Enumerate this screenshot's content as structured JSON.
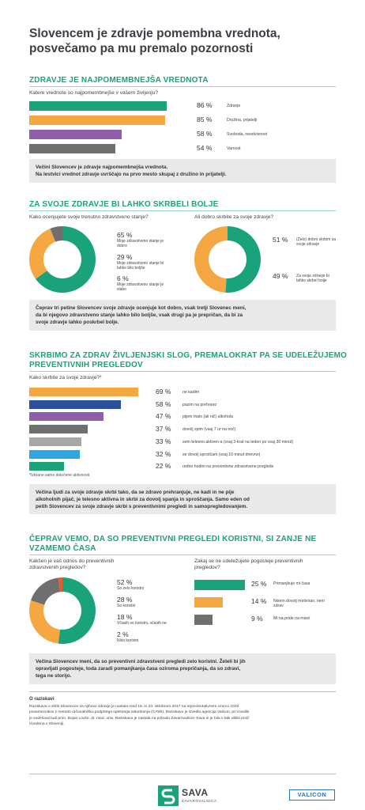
{
  "header": {
    "title_line1": "Slovencem je zdravje pomembna vrednota,",
    "title_line2": "posvečamo pa mu premalo pozornosti"
  },
  "colors": {
    "green": "#1aa37a",
    "orange": "#f5a742",
    "purple": "#8e5fa8",
    "gray": "#6f6f6f",
    "blue_dark": "#2c4f9c",
    "gray_light": "#a7a7a7",
    "blue": "#2ea6e0",
    "red_orange": "#e95b2d"
  },
  "section1": {
    "title": "ZDRAVJE JE NAJPOMEMBNEJŠA VREDNOTA",
    "question": "Katere vrednote so najpomembnejše v vašem življenju?",
    "summary_line1": "Večini Slovencev je zdravje najpomembnejša vrednota.",
    "summary_line2": "Na lestvici vrednot zdravje uvrščajo na prvo mesto skupaj z družino in prijatelji."
  },
  "section2": {
    "title": "ZA SVOJE ZDRAVJE BI LAHKO SKRBELI BOLJE",
    "question_left": "Kako ocenjujete svoje trenutno zdravstveno stanje?",
    "question_right": "Ali dobro skrbite za svoje zdravje?",
    "summary_line1": "Čeprav tri petine Slovencev svoje zdravje ocenjuje kot dobro, vsak tretji Slovenec meni,",
    "summary_line2": "da bi njegovo zdravstveno stanje lahko bilo boljše, vsak drugi pa je prepričan, da bi za",
    "summary_line3": "svoje zdravje lahko poskrbel bolje."
  },
  "section3": {
    "title_line1": "SKRBIMO ZA ZDRAV ŽIVLJENJSKI SLOG, PREMALOKRAT PA SE UDELEŽUJEMO",
    "title_line2": "PREVENTIVNIH PREGLEDOV",
    "question": "Kako skrbite za svoje zdravje?*",
    "note": "*Izbrane samo določene aktivnosti.",
    "summary_line1": "Večina ljudi za svoje zdravje skrbi tako, da se zdravo prehranjuje, ne kadi in ne pije",
    "summary_line2": "alkoholnih pijač, je telesno aktivna in skrbi za dovolj spanja in sproščanja. Samo eden od",
    "summary_line3": "petih Slovencev za svoje zdravje skrbi s preventivnimi pregledi in samopregledovanjem."
  },
  "section4": {
    "title_line1": "ČEPRAV VEMO, DA SO PREVENTIVNI PREGLEDI KORISTNI, SI ZANJE NE",
    "title_line2": "VZAMEMO ČASA",
    "question_left_line1": "Kakšen je vaš odnos do preventivnih",
    "question_left_line2": "zdravstvenih pregledov?",
    "question_right_line1": "Zakaj se ne udeležujete pogosteje preventivnih",
    "question_right_line2": "pregledov?",
    "summary_line1": "Večina Slovencev meni, da so preventivni zdravstveni pregledi zelo koristni. Želeli bi jih",
    "summary_line2": "opravljati pogosteje, toda zaradi pomanjkanja časa oziroma prepričanja, da so zdravi,",
    "summary_line3": "tega ne storijo."
  },
  "footer": {
    "title": "O raziskavi",
    "line1": "Raziskava o skrbi Slovencev za njihovo zdravje je nastala med 19. in 23. oktobrom 2017 na reprezentativnem vzorcu 1032",
    "line2": "posameznikov z metodo računalniško podprtega spletnega anketiranja (CAWI). Raziskavo je izvedla agencija Valicon, pri izvedbi",
    "line3": "je sodeloval tudi prim. Bojan Lovše, dr. med. univ. Raziskava je nastala na pobudo Zavarovalnice Sava in je bila v taki obliki prvič",
    "line4": "izvedena v Sloveniji.",
    "brand": "SAVA",
    "brand_sub": "ZAVAROVALNICA",
    "partner": "VALICON"
  },
  "chart_data": [
    {
      "type": "bar",
      "categories": [
        "Zdravje",
        "Družina, prijatelji",
        "Svoboda, neodvisnost",
        "Varnost"
      ],
      "values": [
        86,
        85,
        58,
        54
      ],
      "labels": [
        "86 %",
        "85 %",
        "58 %",
        "54 %"
      ],
      "colors": [
        "#1aa37a",
        "#f5a742",
        "#8e5fa8",
        "#6f6f6f"
      ]
    },
    {
      "type": "pie",
      "categories": [
        "Moje zdravstveno stanje je dobro",
        "Moje zdravstveno stanje bi lahko bilo boljše",
        "Moje zdravstveno stanje je slabo"
      ],
      "values": [
        65,
        29,
        6
      ],
      "labels": [
        "65 %",
        "29 %",
        "6 %"
      ],
      "colors": [
        "#1aa37a",
        "#f5a742",
        "#6f6f6f"
      ]
    },
    {
      "type": "pie",
      "categories": [
        "(Zelo) dobro skrbim za svoje zdravje",
        "Za svoje zdravje bi lahko skrbel bolje"
      ],
      "values": [
        51,
        49
      ],
      "labels": [
        "51 %",
        "49 %"
      ],
      "colors": [
        "#1aa37a",
        "#f5a742"
      ]
    },
    {
      "type": "bar",
      "categories": [
        "ne kadim",
        "pazim na prehrano",
        "pijem malo (ali nič) alkohola",
        "dovolj spim (vsaj 7 ur na noč)",
        "sem telesno aktiven-a (vsaj 3-krat na teden po vsaj 30 minut)",
        "se dovolj sproščam (vsaj 10 minut dnevno)",
        "redno hodim na preventivne zdravstvene preglede"
      ],
      "values": [
        69,
        58,
        47,
        37,
        33,
        32,
        22
      ],
      "labels": [
        "69 %",
        "58 %",
        "47 %",
        "37 %",
        "33 %",
        "32 %",
        "22 %"
      ],
      "colors": [
        "#f5a742",
        "#2c4f9c",
        "#8e5fa8",
        "#6f6f6f",
        "#a7a7a7",
        "#2ea6e0",
        "#1aa37a"
      ]
    },
    {
      "type": "pie",
      "categories": [
        "So zelo koristni",
        "So koristni",
        "Včasih so koristni, včasih ne",
        "Niso koristni"
      ],
      "values": [
        52,
        28,
        18,
        2
      ],
      "labels": [
        "52 %",
        "28 %",
        "18 %",
        "2 %"
      ],
      "colors": [
        "#1aa37a",
        "#f5a742",
        "#6f6f6f",
        "#e95b2d"
      ]
    },
    {
      "type": "bar",
      "categories": [
        "Primanjkuje mi časa",
        "Nisem dovolj motiviran, sem zdrav",
        "Mi na pride na misel"
      ],
      "values": [
        25,
        14,
        9
      ],
      "labels": [
        "25 %",
        "14 %",
        "9 %"
      ],
      "colors": [
        "#1aa37a",
        "#f5a742",
        "#6f6f6f"
      ]
    }
  ]
}
